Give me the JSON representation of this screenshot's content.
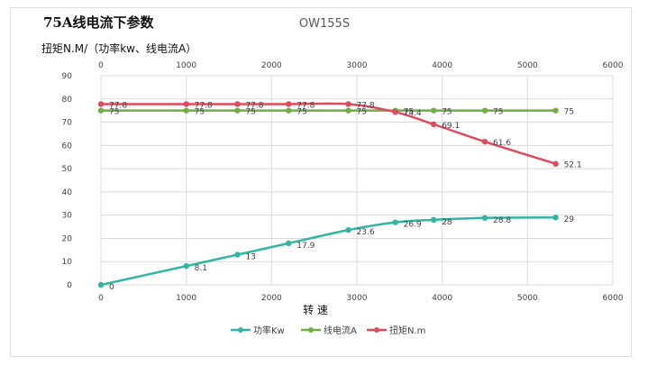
{
  "header": {
    "title": "75A线电流下参数",
    "model": "OW155S",
    "y_axis_label": "扭矩N.M/（功率kw、线电流A）"
  },
  "colors": {
    "power": "#33b5a5",
    "current": "#70ad47",
    "torque": "#e04a5f",
    "grid": "#d9d9d9"
  },
  "chart_data": {
    "type": "line",
    "title": "OW155S",
    "xlabel": "转  速",
    "ylabel": "扭矩N.M/（功率kw、线电流A）",
    "xlim": [
      0,
      6000
    ],
    "ylim": [
      0,
      90
    ],
    "x_ticks": [
      "0",
      "1000",
      "2000",
      "3000",
      "4000",
      "5000",
      "6000"
    ],
    "y_ticks": [
      "0",
      "10",
      "20",
      "30",
      "40",
      "50",
      "60",
      "70",
      "80",
      "90"
    ],
    "grid": true,
    "legend_position": "bottom",
    "series": [
      {
        "name": "功率Kw",
        "color": "#33b5a5",
        "x": [
          0,
          1000,
          1600,
          2200,
          2900,
          3450,
          3900,
          4500,
          5330
        ],
        "y": [
          0,
          8.1,
          13,
          17.9,
          23.6,
          26.9,
          28,
          28.8,
          29
        ],
        "labels": [
          "0",
          "8.1",
          "13",
          "17.9",
          "23.6",
          "26.9",
          "28",
          "28.8",
          "29"
        ]
      },
      {
        "name": "线电流A",
        "color": "#70ad47",
        "x": [
          0,
          1000,
          1600,
          2200,
          2900,
          3450,
          3900,
          4500,
          5330
        ],
        "y": [
          75,
          75,
          75,
          75,
          75,
          75,
          75,
          75,
          75
        ],
        "labels": [
          "75",
          "75",
          "75",
          "75",
          "75",
          "75",
          "75",
          "75",
          "75"
        ]
      },
      {
        "name": "扭矩N.m",
        "color": "#e04a5f",
        "x": [
          0,
          1000,
          1600,
          2200,
          2900,
          3450,
          3900,
          4500,
          5330
        ],
        "y": [
          77.8,
          77.8,
          77.8,
          77.8,
          77.8,
          74.4,
          69.1,
          61.6,
          52.1
        ],
        "labels": [
          "77.8",
          "77.8",
          "77.8",
          "77.8",
          "77.8",
          "74.4",
          "69.1",
          "61.6",
          "52.1"
        ]
      }
    ]
  }
}
